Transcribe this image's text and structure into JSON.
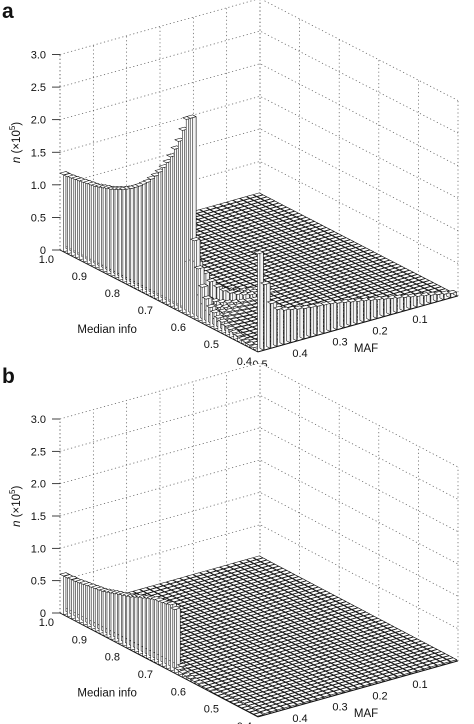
{
  "chart_data": [
    {
      "type": "bar3d",
      "panel_label": "a",
      "zlabel_prefix": "n",
      "zlabel_unit": " (×10",
      "zlabel_exp": "5",
      "zlabel_close": ")",
      "xlabel": "MAF",
      "ylabel": "Median info",
      "z_ticks": [
        "0",
        "0.5",
        "1.0",
        "1.5",
        "2.0",
        "2.5",
        "3.0"
      ],
      "maf_ticks": [
        "0.1",
        "0.2",
        "0.3",
        "0.4",
        "0.5"
      ],
      "info_ticks": [
        "0.4",
        "0.5",
        "0.6",
        "0.7",
        "0.8",
        "0.9",
        "1.0"
      ],
      "zlim": [
        0,
        3.0
      ],
      "maf_range": [
        0,
        0.5
      ],
      "info_range": [
        0.4,
        1.0
      ],
      "grid": true,
      "series": [
        {
          "description": "bars at Median info = 1.0 across MAF bins (0.5 to 0.0)",
          "maf_bins": [
            0.5,
            0.49,
            0.48,
            0.47,
            0.46,
            0.45,
            0.44,
            0.43,
            0.42,
            0.41,
            0.4,
            0.39,
            0.38,
            0.37,
            0.36,
            0.35,
            0.34,
            0.33,
            0.32,
            0.31,
            0.3,
            0.29,
            0.28,
            0.27,
            0.26,
            0.25,
            0.24,
            0.23,
            0.22,
            0.21,
            0.2,
            0.19,
            0.18,
            0.17,
            0.16,
            0.15,
            0.14,
            0.13,
            0.12,
            0.11,
            0.1,
            0.09,
            0.08,
            0.07,
            0.06,
            0.05,
            0.04,
            0.03,
            0.02,
            0.01
          ],
          "values": [
            1.18,
            1.18,
            1.19,
            1.2,
            1.21,
            1.22,
            1.23,
            1.24,
            1.25,
            1.27,
            1.29,
            1.31,
            1.33,
            1.36,
            1.39,
            1.42,
            1.46,
            1.5,
            1.55,
            1.6,
            1.66,
            1.72,
            1.8,
            1.88,
            1.97,
            2.07,
            2.18,
            2.3,
            2.45,
            2.6,
            2.8,
            3.0,
            3.05,
            1.2,
            0.8,
            0.55,
            0.4,
            0.3,
            0.25,
            0.2,
            0.17,
            0.14,
            0.12,
            0.1,
            0.08,
            0.06,
            0.05,
            0.04,
            0.03,
            0.02
          ]
        },
        {
          "description": "bars at MAF ≈ 0 across Median info bins (1.0 to 0.4)",
          "info_bins": [
            1.0,
            0.99,
            0.98,
            0.97,
            0.96,
            0.95,
            0.94,
            0.93,
            0.92,
            0.91,
            0.9,
            0.89,
            0.88,
            0.87,
            0.86,
            0.85,
            0.84,
            0.83,
            0.82,
            0.81,
            0.8,
            0.79,
            0.78,
            0.77,
            0.76,
            0.75,
            0.74,
            0.73,
            0.72,
            0.71,
            0.7
          ],
          "values": [
            1.5,
            1.0,
            0.68,
            0.56,
            0.52,
            0.5,
            0.48,
            0.46,
            0.45,
            0.44,
            0.43,
            0.42,
            0.4,
            0.38,
            0.36,
            0.34,
            0.32,
            0.3,
            0.28,
            0.26,
            0.24,
            0.22,
            0.2,
            0.18,
            0.16,
            0.14,
            0.12,
            0.1,
            0.08,
            0.06,
            0.04
          ]
        }
      ]
    },
    {
      "type": "bar3d",
      "panel_label": "b",
      "zlabel_prefix": "n",
      "zlabel_unit": " (×10",
      "zlabel_exp": "5",
      "zlabel_close": ")",
      "xlabel": "MAF",
      "ylabel": "Median info",
      "z_ticks": [
        "0",
        "0.5",
        "1.0",
        "1.5",
        "2.0",
        "2.5",
        "3.0"
      ],
      "maf_ticks": [
        "0.1",
        "0.2",
        "0.3",
        "0.4",
        "0.5"
      ],
      "info_ticks": [
        "0.4",
        "0.5",
        "0.6",
        "0.7",
        "0.8",
        "0.9",
        "1.0"
      ],
      "zlim": [
        0,
        3.0
      ],
      "maf_range": [
        0,
        0.5
      ],
      "info_range": [
        0.4,
        1.0
      ],
      "grid": true,
      "series": [
        {
          "description": "bars at Median info = 1.0 across MAF bins (0.5 to 0.0)",
          "maf_bins": [
            0.5,
            0.49,
            0.48,
            0.47,
            0.46,
            0.45,
            0.44,
            0.43,
            0.42,
            0.41,
            0.4,
            0.39,
            0.38,
            0.37,
            0.36,
            0.35,
            0.34,
            0.33,
            0.32,
            0.31,
            0.3,
            0.29,
            0.28,
            0.27,
            0.26,
            0.25,
            0.24,
            0.23,
            0.22,
            0.21,
            0.2,
            0.19,
            0.18,
            0.17,
            0.16,
            0.15,
            0.14,
            0.13,
            0.12,
            0.11,
            0.1,
            0.09,
            0.08,
            0.07,
            0.06,
            0.05,
            0.04,
            0.03,
            0.02,
            0.01
          ],
          "values": [
            0.6,
            0.6,
            0.61,
            0.61,
            0.62,
            0.63,
            0.64,
            0.65,
            0.66,
            0.67,
            0.68,
            0.7,
            0.72,
            0.74,
            0.76,
            0.78,
            0.8,
            0.82,
            0.85,
            0.88,
            0.9,
            0.93,
            0.95,
            0.97,
            0.98,
            0.99,
            1.0,
            1.02,
            0.98,
            0.08,
            0.06,
            0.05,
            0.04,
            0.03,
            0.03,
            0.02,
            0.02,
            0.02,
            0.01,
            0.01,
            0.01,
            0.01,
            0.01,
            0.01,
            0.01,
            0.01,
            0.01,
            0.01,
            0.01,
            0.01
          ]
        }
      ]
    }
  ]
}
